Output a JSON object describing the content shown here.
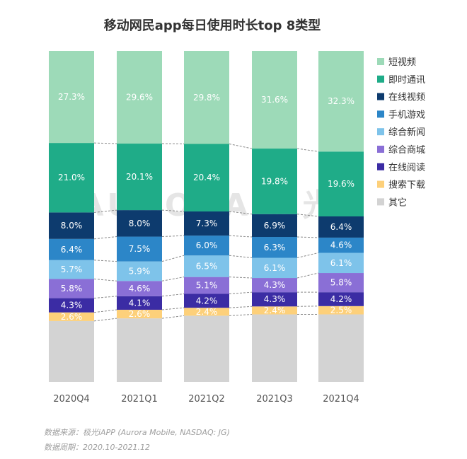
{
  "chart_data": {
    "type": "bar",
    "stacked": true,
    "title": "移动网民app每日使用时长top 8类型",
    "xlabel": "",
    "ylabel": "",
    "ylim": [
      0,
      100
    ],
    "categories": [
      "2020Q4",
      "2021Q1",
      "2021Q2",
      "2021Q3",
      "2021Q4"
    ],
    "series": [
      {
        "name": "其它",
        "color": "#d3d3d3",
        "values": [
          18.4,
          19.2,
          20.0,
          20.4,
          20.4
        ],
        "labels": [
          "",
          "",
          "",
          "",
          ""
        ]
      },
      {
        "name": "搜索下载",
        "color": "#fdd07a",
        "values": [
          2.6,
          2.6,
          2.4,
          2.4,
          2.5
        ],
        "labels": [
          "2.6%",
          "2.6%",
          "2.4%",
          "2.4%",
          "2.5%"
        ]
      },
      {
        "name": "在线阅读",
        "color": "#3b2ca4",
        "values": [
          4.3,
          4.1,
          4.2,
          4.3,
          4.2
        ],
        "labels": [
          "4.3%",
          "4.1%",
          "4.2%",
          "4.3%",
          "4.2%"
        ]
      },
      {
        "name": "综合商城",
        "color": "#8a6fd6",
        "values": [
          5.8,
          4.6,
          5.1,
          4.3,
          5.8
        ],
        "labels": [
          "5.8%",
          "4.6%",
          "5.1%",
          "4.3%",
          "5.8%"
        ]
      },
      {
        "name": "综合新闻",
        "color": "#7ec3ea",
        "values": [
          5.7,
          5.9,
          6.5,
          6.1,
          6.1
        ],
        "labels": [
          "5.7%",
          "5.9%",
          "6.5%",
          "6.1%",
          "6.1%"
        ]
      },
      {
        "name": "手机游戏",
        "color": "#2c86c8",
        "values": [
          6.4,
          7.5,
          6.0,
          6.3,
          4.6
        ],
        "labels": [
          "6.4%",
          "7.5%",
          "6.0%",
          "6.3%",
          "4.6%"
        ]
      },
      {
        "name": "在线视频",
        "color": "#0d3b6e",
        "values": [
          8.0,
          8.0,
          7.3,
          6.9,
          6.4
        ],
        "labels": [
          "8.0%",
          "8.0%",
          "7.3%",
          "6.9%",
          "6.4%"
        ]
      },
      {
        "name": "即时通讯",
        "color": "#1fac88",
        "values": [
          21.0,
          20.1,
          20.4,
          19.8,
          19.6
        ],
        "labels": [
          "21.0%",
          "20.1%",
          "20.4%",
          "19.8%",
          "19.6%"
        ]
      },
      {
        "name": "短视频",
        "color": "#9ddab8",
        "values": [
          27.3,
          29.6,
          29.8,
          31.6,
          32.3
        ],
        "labels": [
          "27.3%",
          "29.6%",
          "29.8%",
          "31.6%",
          "32.3%"
        ]
      }
    ],
    "legend": {
      "position": "right",
      "order": [
        "短视频",
        "即时通讯",
        "在线视频",
        "手机游戏",
        "综合新闻",
        "综合商城",
        "在线阅读",
        "搜索下载",
        "其它"
      ]
    },
    "grid": false
  },
  "watermark": "AURORA 极光",
  "source": {
    "line1": "数据来源：极光iAPP (Aurora Mobile, NASDAQ: JG)",
    "line2": "数据周期：2020.10-2021.12"
  }
}
